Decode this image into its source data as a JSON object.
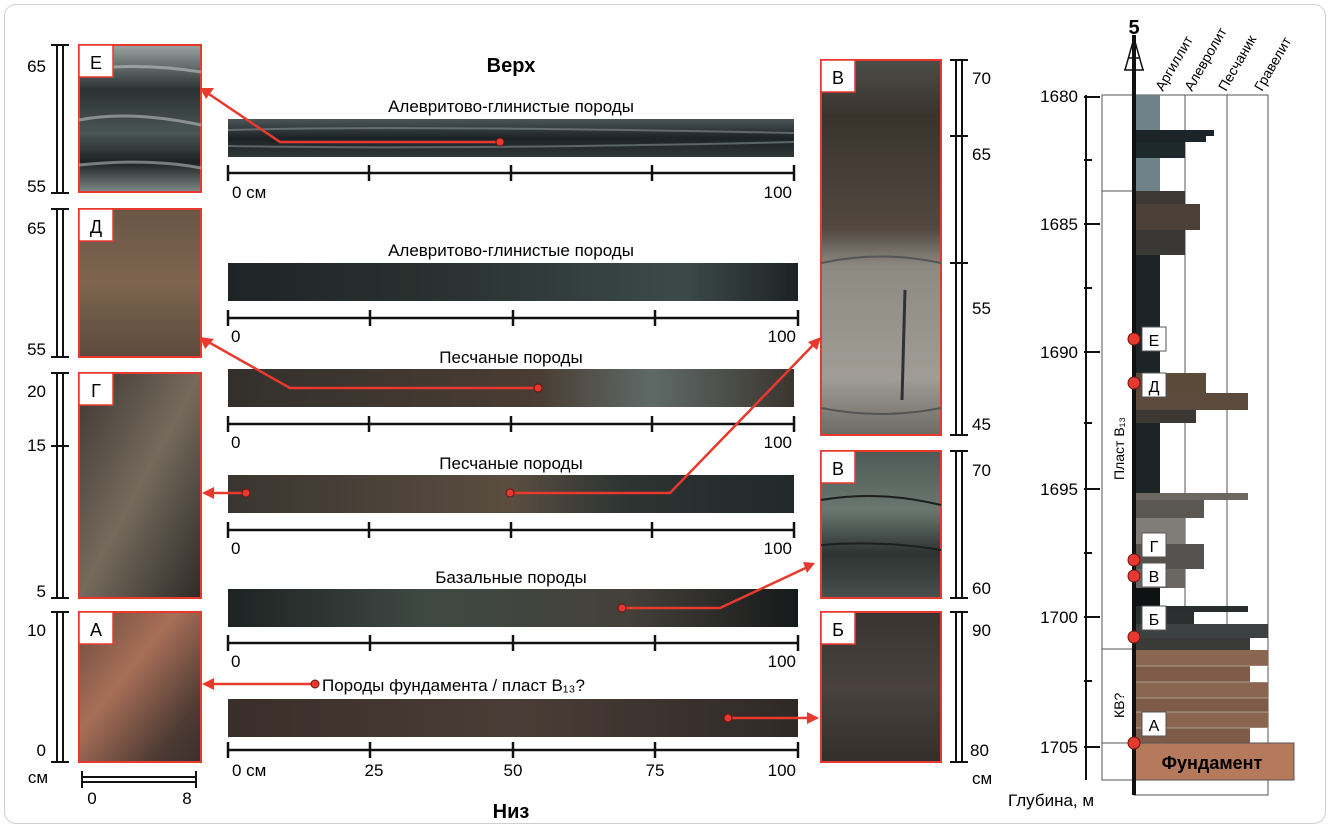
{
  "header": {
    "top": "Верх",
    "bottom": "Низ"
  },
  "cores": [
    {
      "caption": "Алевритово-глинистые породы",
      "tick_labels": [
        "0 см",
        "100"
      ]
    },
    {
      "caption": "Алевритово-глинистые породы",
      "tick_labels": [
        "0",
        "100"
      ]
    },
    {
      "caption": "Песчаные породы",
      "tick_labels": [
        "0",
        "100"
      ]
    },
    {
      "caption": "Песчаные породы",
      "tick_labels": [
        "0",
        "100"
      ]
    },
    {
      "caption": "Базальные породы",
      "tick_labels": [
        "0",
        "100"
      ]
    },
    {
      "caption": "Породы фундамента / пласт В₁₃?",
      "tick_labels": [
        "0 см",
        "25",
        "50",
        "75",
        "100"
      ]
    }
  ],
  "left_photos": [
    {
      "label": "Е",
      "scale": [
        "65",
        "55"
      ]
    },
    {
      "label": "Д",
      "scale": [
        "65",
        "55"
      ]
    },
    {
      "label": "Г",
      "scale": [
        "20",
        "15",
        "5"
      ]
    },
    {
      "label": "А",
      "scale": [
        "10",
        "0"
      ]
    }
  ],
  "left_scale": {
    "unit": "см",
    "ticks": [
      "0",
      "8"
    ]
  },
  "right_photos": [
    {
      "label": "В",
      "scale": [
        "70",
        "65",
        "55",
        "45"
      ]
    },
    {
      "label": "В",
      "scale": [
        "70",
        "60"
      ]
    },
    {
      "label": "Б",
      "scale": [
        "90",
        "80"
      ]
    }
  ],
  "right_scale_unit": "см",
  "column": {
    "well": "5",
    "lithology": [
      "Аргиллит",
      "Алевролит",
      "Песчаник",
      "Гравелит"
    ],
    "depths": [
      "1680",
      "1685",
      "1690",
      "1695",
      "1700",
      "1705"
    ],
    "depth_label": "Глубина, м",
    "formation": "Пласт В₁₃",
    "kv": "КВ?",
    "basement": "Фундамент",
    "samples": [
      "Е",
      "Д",
      "Г",
      "В",
      "Б",
      "А"
    ]
  },
  "colors": {
    "arrow": "#e8392e",
    "frame": "#e8392e",
    "claystone": "#1c2427",
    "siltstone": "#3d3a36",
    "basement": "#b57a5c",
    "crust": "#8a6550"
  }
}
